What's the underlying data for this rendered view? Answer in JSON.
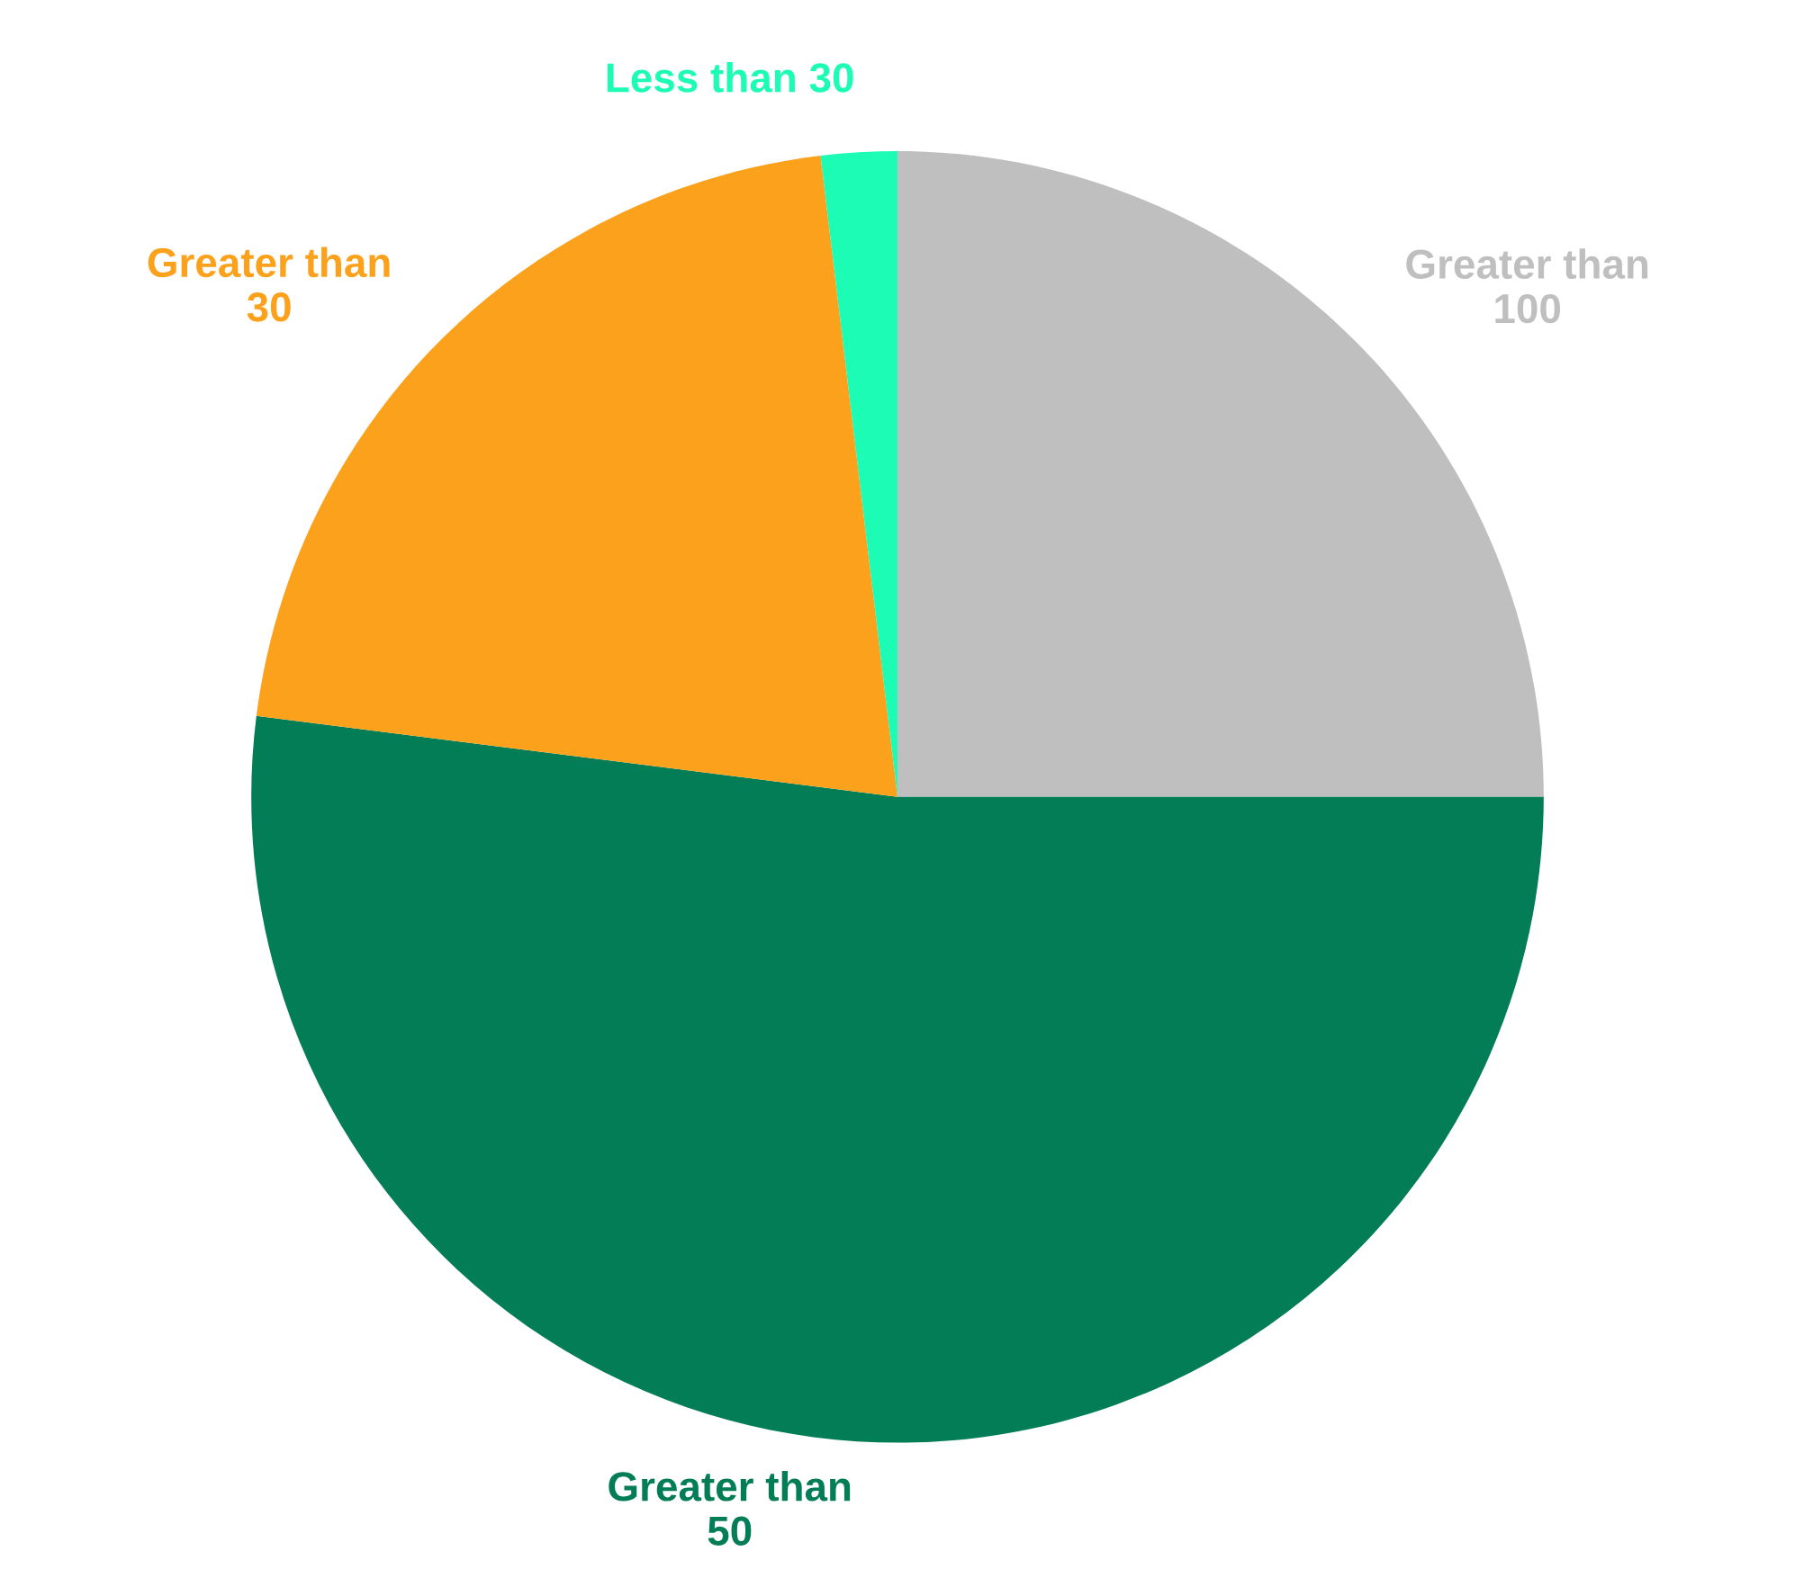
{
  "chart_data": {
    "type": "pie",
    "categories": [
      "Greater than 100",
      "Greater than 50",
      "Greater than 30",
      "Less than 30"
    ],
    "values": [
      25,
      52,
      21.1,
      1.9
    ],
    "colors": [
      "#bfbfbf",
      "#037d55",
      "#fba11b",
      "#1cfcb4"
    ],
    "legend": false
  }
}
